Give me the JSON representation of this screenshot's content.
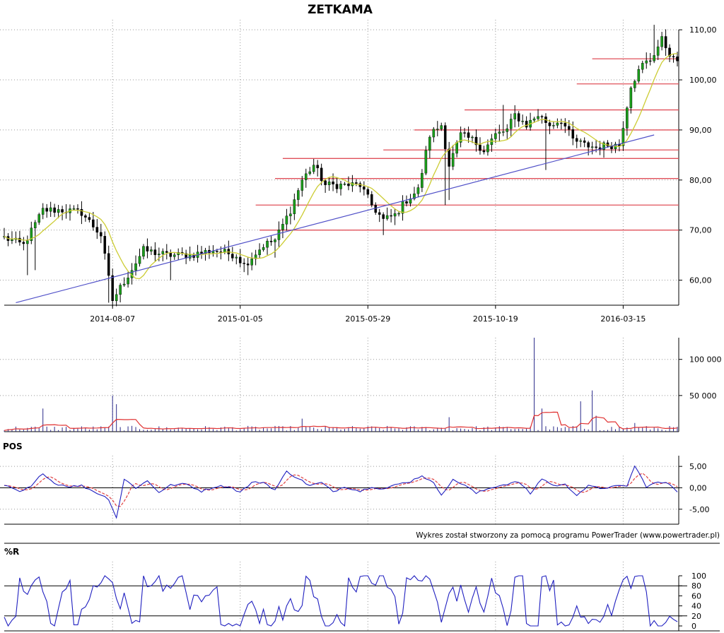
{
  "chart_data": {
    "type": "stock-chart",
    "title": "ZETKAMA",
    "credit": "Wykres został stworzony za pomocą programu PowerTrader (www.powertrader.pl)",
    "date_labels": [
      "2014-08-07",
      "2015-01-05",
      "2015-05-29",
      "2015-10-19",
      "2016-03-15"
    ],
    "price_panel": {
      "ylim": [
        55,
        112
      ],
      "y_ticks": [
        "60,00",
        "70,00",
        "80,00",
        "90,00",
        "100,00",
        "110,00"
      ],
      "y_tick_values": [
        60,
        70,
        80,
        90,
        100,
        110
      ],
      "support_lines": [
        {
          "value": 70.0
        },
        {
          "value": 75.0
        },
        {
          "value": 80.3
        },
        {
          "value": 84.3
        },
        {
          "value": 86.0
        },
        {
          "value": 90.0
        },
        {
          "value": 94.0
        },
        {
          "value": 99.2
        },
        {
          "value": 104.2
        }
      ],
      "trendline": {
        "from": [
          3,
          55.5
        ],
        "to": [
          168,
          89
        ]
      },
      "bars": 175,
      "price_anchors": [
        [
          0,
          68.5
        ],
        [
          5,
          67
        ],
        [
          10,
          74
        ],
        [
          15,
          74
        ],
        [
          20,
          73.5
        ],
        [
          25,
          69
        ],
        [
          28,
          56
        ],
        [
          32,
          61
        ],
        [
          36,
          66
        ],
        [
          42,
          65
        ],
        [
          48,
          65
        ],
        [
          54,
          66
        ],
        [
          60,
          65
        ],
        [
          62,
          63
        ],
        [
          67,
          67
        ],
        [
          70,
          68
        ],
        [
          74,
          74
        ],
        [
          77,
          80
        ],
        [
          80,
          83
        ],
        [
          83,
          79
        ],
        [
          88,
          79
        ],
        [
          92,
          79
        ],
        [
          95,
          75
        ],
        [
          98,
          72
        ],
        [
          101,
          73
        ],
        [
          104,
          76
        ],
        [
          107,
          78
        ],
        [
          110,
          89
        ],
        [
          113,
          91
        ],
        [
          115,
          83
        ],
        [
          118,
          89
        ],
        [
          121,
          88
        ],
        [
          124,
          86
        ],
        [
          127,
          89
        ],
        [
          130,
          90
        ],
        [
          132,
          93
        ],
        [
          135,
          91
        ],
        [
          138,
          93
        ],
        [
          141,
          91
        ],
        [
          144,
          92
        ],
        [
          147,
          88
        ],
        [
          150,
          87
        ],
        [
          153,
          86.5
        ],
        [
          156,
          87
        ],
        [
          159,
          87
        ],
        [
          162,
          99
        ],
        [
          165,
          103
        ],
        [
          167,
          104
        ],
        [
          170,
          108
        ],
        [
          173,
          104
        ],
        [
          174,
          104
        ]
      ],
      "spikes": [
        [
          6,
          61
        ],
        [
          8,
          62
        ],
        [
          27,
          55.5
        ],
        [
          43,
          60
        ],
        [
          63,
          61
        ],
        [
          70,
          64.5
        ],
        [
          81,
          84
        ],
        [
          98,
          69
        ],
        [
          101,
          71
        ],
        [
          114,
          75
        ],
        [
          115,
          76
        ],
        [
          129,
          95
        ],
        [
          140,
          82
        ],
        [
          168,
          111
        ],
        [
          169,
          108
        ]
      ]
    },
    "volume_panel": {
      "ylim": [
        0,
        130000
      ],
      "y_ticks": [
        "50 000",
        "100 000"
      ],
      "y_tick_values": [
        50000,
        100000
      ],
      "spikes": [
        [
          10,
          32000
        ],
        [
          28,
          50000
        ],
        [
          29,
          38000
        ],
        [
          137,
          130000
        ],
        [
          139,
          32000
        ],
        [
          149,
          42000
        ],
        [
          152,
          57000
        ],
        [
          153,
          22000
        ],
        [
          77,
          18000
        ],
        [
          115,
          20000
        ],
        [
          163,
          12000
        ]
      ]
    },
    "pos_panel": {
      "label": "POS",
      "ylim": [
        -8.5,
        7.5
      ],
      "y_ticks": [
        "5,00",
        "0,00",
        "-5,00"
      ],
      "y_tick_values": [
        5,
        0,
        -5
      ],
      "anchors": [
        [
          0,
          0.6
        ],
        [
          4,
          -1.0
        ],
        [
          7,
          0.3
        ],
        [
          10,
          3.5
        ],
        [
          13,
          1.0
        ],
        [
          17,
          0.3
        ],
        [
          20,
          0.5
        ],
        [
          24,
          -1.2
        ],
        [
          27,
          -2.6
        ],
        [
          29,
          -7.0
        ],
        [
          31,
          2.0
        ],
        [
          34,
          0.0
        ],
        [
          37,
          1.6
        ],
        [
          40,
          -1.0
        ],
        [
          43,
          0.6
        ],
        [
          47,
          0.9
        ],
        [
          51,
          -0.8
        ],
        [
          55,
          0.4
        ],
        [
          58,
          0.3
        ],
        [
          61,
          -1.0
        ],
        [
          64,
          1.2
        ],
        [
          67,
          1.3
        ],
        [
          70,
          -0.5
        ],
        [
          73,
          3.8
        ],
        [
          76,
          2.2
        ],
        [
          79,
          0.5
        ],
        [
          82,
          1.2
        ],
        [
          85,
          -0.9
        ],
        [
          88,
          0.3
        ],
        [
          92,
          -0.8
        ],
        [
          95,
          0.3
        ],
        [
          98,
          -0.3
        ],
        [
          102,
          0.9
        ],
        [
          105,
          1.5
        ],
        [
          108,
          2.9
        ],
        [
          111,
          1.0
        ],
        [
          113,
          -1.5
        ],
        [
          116,
          1.8
        ],
        [
          119,
          0.7
        ],
        [
          122,
          -1.3
        ],
        [
          126,
          0.1
        ],
        [
          130,
          0.9
        ],
        [
          133,
          1.4
        ],
        [
          136,
          -1.4
        ],
        [
          139,
          2.2
        ],
        [
          142,
          0.5
        ],
        [
          145,
          0.7
        ],
        [
          148,
          -1.6
        ],
        [
          151,
          0.4
        ],
        [
          154,
          -0.1
        ],
        [
          158,
          0.3
        ],
        [
          161,
          0.5
        ],
        [
          163,
          5.1
        ],
        [
          166,
          0.3
        ],
        [
          169,
          1.3
        ],
        [
          172,
          0.9
        ],
        [
          174,
          -0.8
        ]
      ]
    },
    "wr_panel": {
      "label": "%R",
      "ylim": [
        0,
        100
      ],
      "y_ticks": [
        "0",
        "20",
        "40",
        "60",
        "80",
        "100"
      ],
      "y_tick_values": [
        0,
        20,
        40,
        60,
        80,
        100
      ],
      "levels": [
        20,
        80
      ]
    },
    "colors": {
      "up_candle": "#1a9e1a",
      "down_candle": "#000000",
      "moving_average": "#cccc33",
      "support": "#e0505a",
      "trendline": "#5050c8",
      "volume": "#2a2a8a",
      "volume_ma": "#e03030",
      "oscillator": "#2020c0",
      "signal": "#e04040"
    }
  }
}
